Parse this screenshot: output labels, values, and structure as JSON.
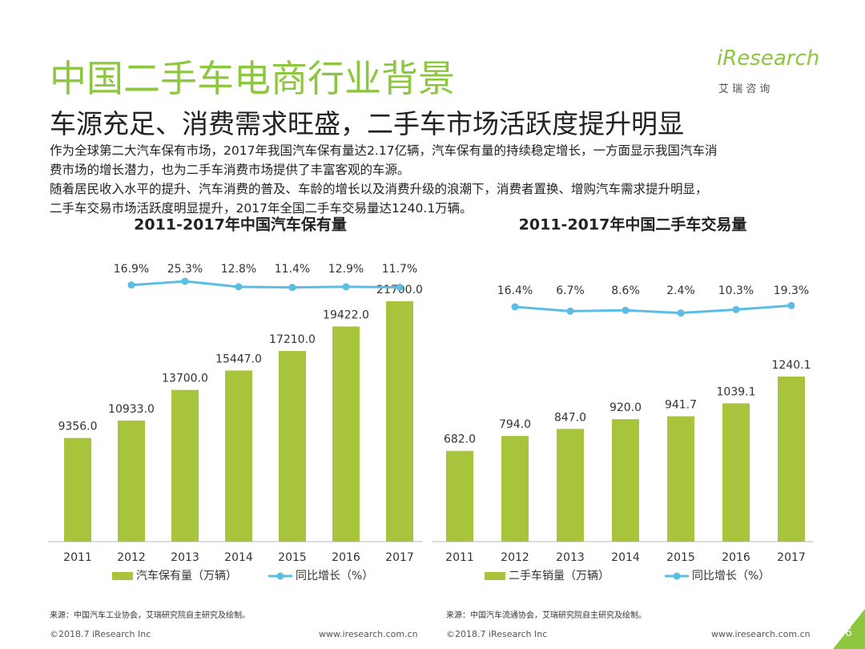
{
  "header": {
    "title": "中国二手车电商行业背景",
    "subtitle": "车源充足、消费需求旺盛，二手车市场活跃度提升明显",
    "logo": "iResearch",
    "logo_sub": "艾 瑞 咨 询"
  },
  "body": {
    "lines": [
      "作为全球第二大汽车保有市场，2017年我国汽车保有量达2.17亿辆，汽车保有量的持续稳定增长，一方面显示我国汽车消",
      "费市场的增长潜力，也为二手车消费市场提供了丰富客观的车源。",
      "随着居民收入水平的提升、汽车消费的普及、车龄的增长以及消费升级的浪潮下，消费者置换、增购汽车需求提升明显，",
      "二手车交易市场活跃度明显提升，2017年全国二手车交易量达1240.1万辆。"
    ]
  },
  "chart_data": [
    {
      "type": "bar",
      "title": "2011-2017年中国汽车保有量",
      "categories": [
        "2011",
        "2012",
        "2013",
        "2014",
        "2015",
        "2016",
        "2017"
      ],
      "series": [
        {
          "name": "汽车保有量（万辆）",
          "color": "#a8c43c",
          "values": [
            9356,
            10933,
            13700,
            15447,
            17210,
            19422,
            21700
          ],
          "value_labels": [
            "9356.0",
            "10933.0",
            "13700.0",
            "15447.0",
            "17210.0",
            "19422.0",
            "21700.0"
          ]
        },
        {
          "name": "同比增长（%）",
          "type": "line",
          "axis": "y2",
          "color": "#5bbde3",
          "values": [
            null,
            16.9,
            25.3,
            12.8,
            11.4,
            12.9,
            11.7
          ],
          "value_labels": [
            null,
            "16.9%",
            "25.3%",
            "12.8%",
            "11.4%",
            "12.9%",
            "11.7%"
          ]
        }
      ]
    },
    {
      "type": "bar",
      "title": "2011-2017年中国二手车交易量",
      "categories": [
        "2011",
        "2012",
        "2013",
        "2014",
        "2015",
        "2016",
        "2017"
      ],
      "series": [
        {
          "name": "二手车销量（万辆）",
          "color": "#a8c43c",
          "values": [
            682,
            794,
            847,
            920,
            941.7,
            1039.1,
            1240.1
          ],
          "value_labels": [
            "682.0",
            "794.0",
            "847.0",
            "920.0",
            "941.7",
            "1039.1",
            "1240.1"
          ]
        },
        {
          "name": "同比增长（%）",
          "type": "line",
          "axis": "y2",
          "color": "#5bbde3",
          "values": [
            null,
            16.4,
            6.7,
            8.6,
            2.4,
            10.3,
            19.3
          ],
          "value_labels": [
            null,
            "16.4%",
            "6.7%",
            "8.6%",
            "2.4%",
            "10.3%",
            "19.3%"
          ]
        }
      ]
    }
  ],
  "footer": {
    "left": {
      "source": "来源：中国汽车工业协会，艾瑞研究院自主研究及绘制。",
      "copyright": "©2018.7 iResearch Inc",
      "website": "www.iresearch.com.cn"
    },
    "right": {
      "source": "来源：中国汽车流通协会，艾瑞研究院自主研究及绘制。",
      "copyright": "©2018.7 iResearch Inc",
      "website": "www.iresearch.com.cn"
    },
    "page": "6"
  }
}
